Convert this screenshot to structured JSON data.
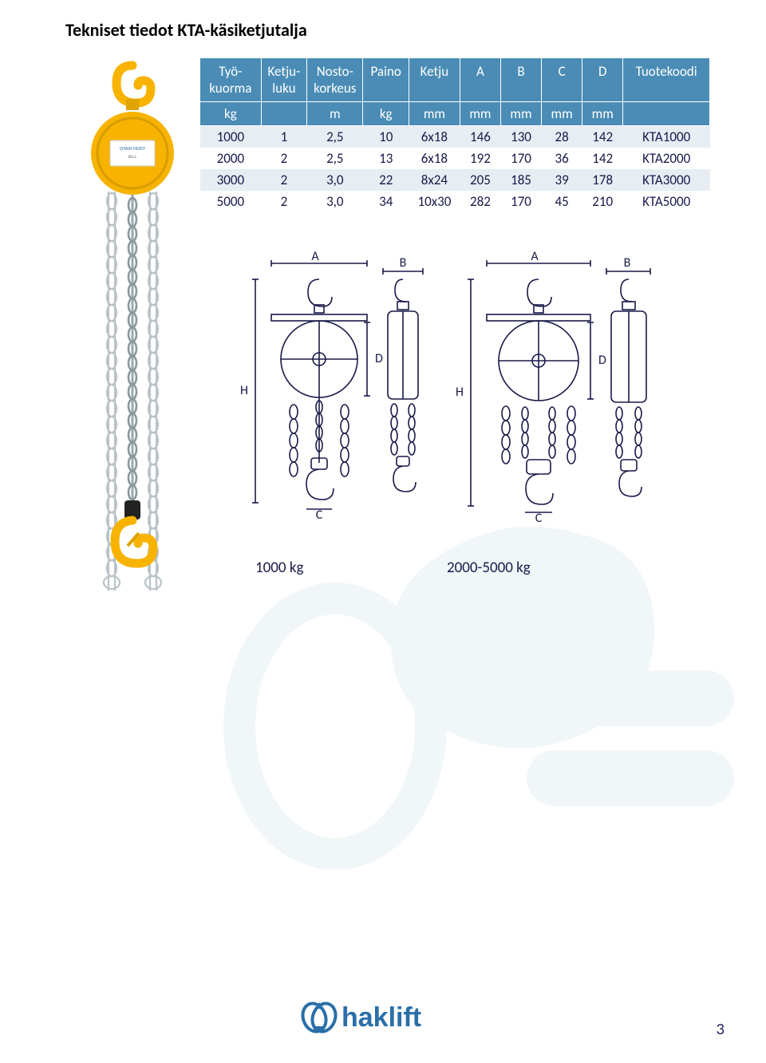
{
  "page": {
    "title": "Tekniset tiedot KTA-käsiketjutalja",
    "page_number": "3"
  },
  "table": {
    "type": "table",
    "header_bg": "#4a8cb5",
    "header_fg": "#ffffff",
    "row_alt_bg": "#e6edf3",
    "row_bg": "#ffffff",
    "text_color": "#1a1a4a",
    "header_fontsize": 17,
    "cell_fontsize": 17,
    "columns": [
      "Työ-\nkuorma",
      "Ketju-\nluku",
      "Nosto-\nkorkeus",
      "Paino",
      "Ketju",
      "A",
      "B",
      "C",
      "D",
      "Tuotekoodi"
    ],
    "units": [
      "kg",
      "",
      "m",
      "kg",
      "mm",
      "mm",
      "mm",
      "mm",
      "mm",
      ""
    ],
    "col_widths_pct": [
      12,
      9,
      11,
      9,
      10,
      8,
      8,
      8,
      8,
      17
    ],
    "rows": [
      [
        "1000",
        "1",
        "2,5",
        "10",
        "6x18",
        "146",
        "130",
        "28",
        "142",
        "KTA1000"
      ],
      [
        "2000",
        "2",
        "2,5",
        "13",
        "6x18",
        "192",
        "170",
        "36",
        "142",
        "KTA2000"
      ],
      [
        "3000",
        "2",
        "3,0",
        "22",
        "8x24",
        "205",
        "185",
        "39",
        "178",
        "KTA3000"
      ],
      [
        "5000",
        "2",
        "3,0",
        "34",
        "10x30",
        "282",
        "170",
        "45",
        "210",
        "KTA5000"
      ]
    ]
  },
  "diagrams": {
    "left_caption": "1000 kg",
    "right_caption": "2000-5000 kg",
    "stroke": "#1a1a4a",
    "label_fontsize": 16,
    "labels": [
      "A",
      "B",
      "C",
      "D",
      "H"
    ]
  },
  "product_image": {
    "hook_color": "#f7b300",
    "body_color": "#f7b300",
    "chain_color": "#b8c4c8",
    "label_bg": "#ffffff"
  },
  "logo": {
    "text": "haklift",
    "color": "#2a6fa8",
    "fontsize": 34
  },
  "watermark": {
    "color": "#2a6fa8"
  }
}
